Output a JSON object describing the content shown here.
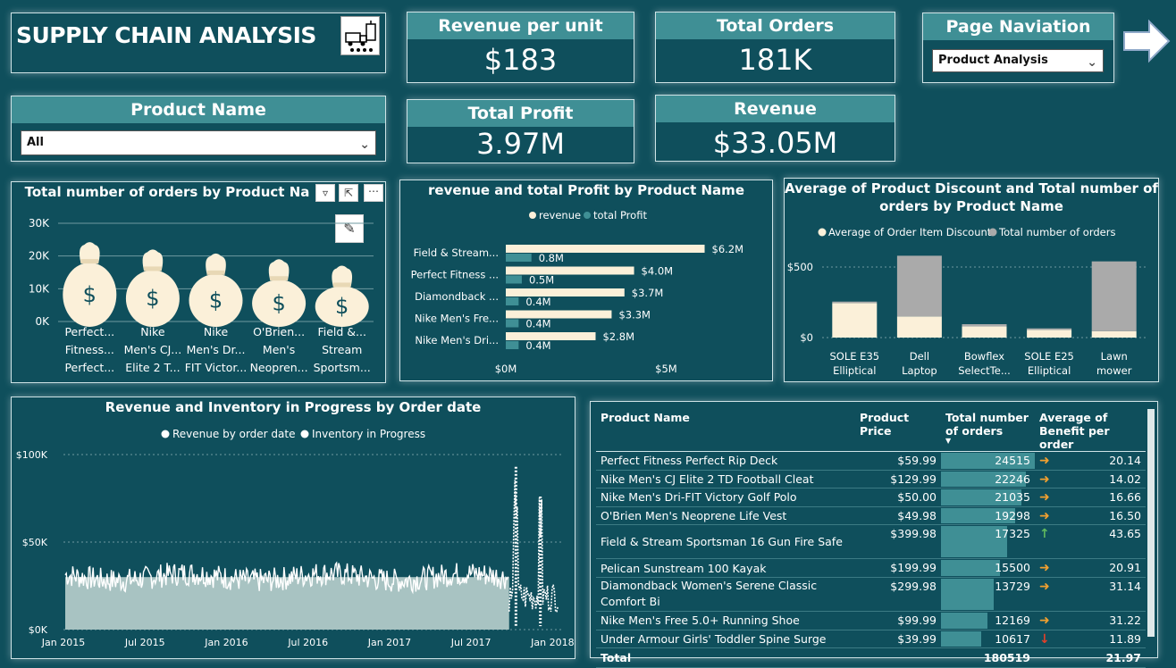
{
  "header": {
    "title": "SUPPLY CHAIN ANALYSIS",
    "logo_icon": "supply-chain-icon"
  },
  "kpis": {
    "revenue_per_unit": {
      "label": "Revenue per unit",
      "value": "$183"
    },
    "total_orders": {
      "label": "Total Orders",
      "value": "181K"
    },
    "total_profit": {
      "label": "Total Profit",
      "value": "3.97M"
    },
    "revenue": {
      "label": "Revenue",
      "value": "$33.05M"
    }
  },
  "navigation": {
    "label": "Page Naviation",
    "selected": "Product Analysis",
    "arrow_icon": "arrow-right-icon"
  },
  "product_filter": {
    "label": "Product Name",
    "selected": "All"
  },
  "orders_chart": {
    "title": "Total number of orders by Product Na",
    "icons": [
      "filter-icon",
      "focus-mode-icon",
      "more-options-icon",
      "edit-icon"
    ],
    "chart_data": {
      "type": "bar",
      "y_ticks": [
        "0K",
        "10K",
        "20K",
        "30K"
      ],
      "ylim": [
        0,
        30000
      ],
      "categories": [
        [
          "Perfect...",
          "Fitness...",
          "Perfect..."
        ],
        [
          "Nike",
          "Men's CJ...",
          "Elite 2 T..."
        ],
        [
          "Nike",
          "Men's Dr...",
          "FIT Victor..."
        ],
        [
          "O'Brien...",
          "Men's",
          "Neopren..."
        ],
        [
          "Field &...",
          "Stream",
          "Sportsm..."
        ]
      ],
      "values": [
        24515,
        22246,
        21035,
        19298,
        17325
      ]
    }
  },
  "revenue_profit_chart": {
    "title": "revenue and total Profit by Product Name",
    "legend": [
      "revenue",
      "total Profit"
    ],
    "chart_data": {
      "type": "bar",
      "orientation": "horizontal",
      "categories": [
        "Field & Stream...",
        "Perfect Fitness ...",
        "Diamondback ...",
        "Nike Men's Fre...",
        "Nike Men's Dri..."
      ],
      "series": [
        {
          "name": "revenue",
          "values": [
            6.2,
            4.0,
            3.7,
            3.3,
            2.8
          ],
          "labels": [
            "$6.2M",
            "$4.0M",
            "$3.7M",
            "$3.3M",
            "$2.8M"
          ]
        },
        {
          "name": "total Profit",
          "values": [
            0.8,
            0.5,
            0.4,
            0.4,
            0.4
          ],
          "labels": [
            "0.8M",
            "0.5M",
            "0.4M",
            "0.4M",
            "0.4M"
          ]
        }
      ],
      "x_ticks": [
        "$0M",
        "$5M"
      ],
      "xlim": [
        0,
        7.3
      ]
    }
  },
  "discount_chart": {
    "title_line1": "Average of Product Discount and Total number of",
    "title_line2": "orders by Product Name",
    "legend": [
      "Average of Order Item Discount",
      "Total number of orders"
    ],
    "chart_data": {
      "type": "bar",
      "stacked": true,
      "categories": [
        [
          "SOLE E35",
          "Elliptical"
        ],
        [
          "Dell",
          "Laptop"
        ],
        [
          "Bowflex",
          "SelectTe..."
        ],
        [
          "SOLE E25",
          "Elliptical"
        ],
        [
          "Lawn",
          "mower"
        ]
      ],
      "series": [
        {
          "name": "Average of Order Item Discount",
          "values": [
            245,
            150,
            80,
            55,
            45
          ]
        },
        {
          "name": "Total number of orders",
          "values": [
            10,
            430,
            15,
            10,
            495
          ]
        }
      ],
      "y_ticks": [
        "$0",
        "$500"
      ],
      "ylim": [
        0,
        650
      ]
    }
  },
  "timeline_chart": {
    "title": "Revenue and Inventory in Progress by Order date",
    "legend": [
      "Revenue by order date",
      "Inventory in Progress"
    ],
    "chart_data": {
      "type": "area",
      "y_ticks": [
        "$0K",
        "$50K",
        "$100K"
      ],
      "ylim": [
        0,
        100000
      ],
      "x_ticks": [
        "Jan 2015",
        "Jul 2015",
        "Jan 2016",
        "Jul 2016",
        "Jan 2017",
        "Jul 2017",
        "Jan 2018"
      ],
      "approx_daily_level": 30000,
      "spikes": [
        {
          "date": "Oct 2017",
          "value": 93000
        },
        {
          "date": "Dec 2017",
          "value": 76000
        }
      ]
    }
  },
  "table": {
    "columns": [
      "Product Name",
      "Product Price",
      "Total number of orders",
      "Average of Benefit per order"
    ],
    "rows": [
      {
        "name": "Perfect Fitness Perfect Rip Deck",
        "price": "$59.99",
        "orders": "24515",
        "orders_value": 24515,
        "trend": "right",
        "benefit": "20.14"
      },
      {
        "name": "Nike Men's CJ Elite 2 TD Football Cleat",
        "price": "$129.99",
        "orders": "22246",
        "orders_value": 22246,
        "trend": "right",
        "benefit": "14.02"
      },
      {
        "name": "Nike Men's Dri-FIT Victory Golf Polo",
        "price": "$50.00",
        "orders": "21035",
        "orders_value": 21035,
        "trend": "right",
        "benefit": "16.66"
      },
      {
        "name": "O'Brien Men's Neoprene Life Vest",
        "price": "$49.98",
        "orders": "19298",
        "orders_value": 19298,
        "trend": "right",
        "benefit": "16.50"
      },
      {
        "name": "Field & Stream Sportsman 16 Gun Fire Safe",
        "price": "$399.98",
        "orders": "17325",
        "orders_value": 17325,
        "trend": "up",
        "benefit": "43.65"
      },
      {
        "name": "Pelican Sunstream 100 Kayak",
        "price": "$199.99",
        "orders": "15500",
        "orders_value": 15500,
        "trend": "right",
        "benefit": "20.91"
      },
      {
        "name": "Diamondback Women's Serene Classic Comfort Bi",
        "price": "$299.98",
        "orders": "13729",
        "orders_value": 13729,
        "trend": "right",
        "benefit": "31.14"
      },
      {
        "name": "Nike Men's Free 5.0+ Running Shoe",
        "price": "$99.99",
        "orders": "12169",
        "orders_value": 12169,
        "trend": "right",
        "benefit": "31.22"
      },
      {
        "name": "Under Armour Girls' Toddler Spine Surge",
        "price": "$39.99",
        "orders": "10617",
        "orders_value": 10617,
        "trend": "down",
        "benefit": "11.89"
      }
    ],
    "total": {
      "label": "Total",
      "orders": "180519",
      "benefit": "21.97"
    },
    "colors": {
      "right": "#f0a030",
      "up": "#5fb85f",
      "down": "#e0402a"
    }
  }
}
